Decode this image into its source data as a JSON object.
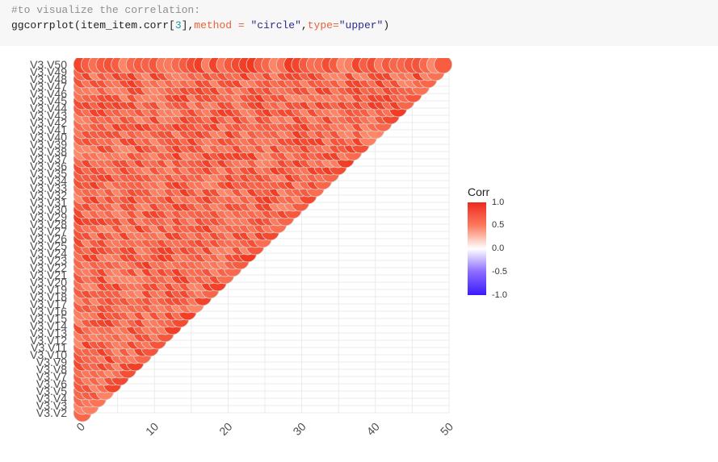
{
  "code": {
    "comment": "#to visualize the correlation:",
    "fn": "ggcorrplot",
    "arg_object": "item_item.corr",
    "index": "3",
    "method_key": "method = ",
    "method_val": "\"circle\"",
    "type_key": "type=",
    "type_val": "\"upper\""
  },
  "chart_data": {
    "type": "corrplot-upper-circle",
    "x_ticks": [
      "0",
      "10",
      "20",
      "30",
      "40",
      "50"
    ],
    "x_range": [
      0,
      50
    ],
    "variables": [
      "V3.V2",
      "V3.V3",
      "V3.V4",
      "V3.V5",
      "V3.V6",
      "V3.V7",
      "V3.V8",
      "V3.V9",
      "V3.V10",
      "V3.V11",
      "V3.V12",
      "V3.V13",
      "V3.V14",
      "V3.V15",
      "V3.V16",
      "V3.V17",
      "V3.V18",
      "V3.V19",
      "V3.V20",
      "V3.V21",
      "V3.V22",
      "V3.V23",
      "V3.V24",
      "V3.V25",
      "V3.V26",
      "V3.V27",
      "V3.V28",
      "V3.V29",
      "V3.V30",
      "V3.V31",
      "V3.V32",
      "V3.V33",
      "V3.V34",
      "V3.V35",
      "V3.V36",
      "V3.V37",
      "V3.V38",
      "V3.V39",
      "V3.V40",
      "V3.V41",
      "V3.V42",
      "V3.V43",
      "V3.V44",
      "V3.V45",
      "V3.V46",
      "V3.V47",
      "V3.V48",
      "V3.V49",
      "V3.V50"
    ],
    "corr_range": [
      0.6,
      0.95
    ],
    "colors": {
      "high": "#f23a22",
      "mid": "#ff8a6b",
      "outline": "#d9d9d9",
      "grid": "#ebebeb"
    }
  },
  "legend": {
    "title": "Corr",
    "labels": [
      "1.0",
      "0.5",
      "0.0",
      "-0.5",
      "-1.0"
    ]
  }
}
